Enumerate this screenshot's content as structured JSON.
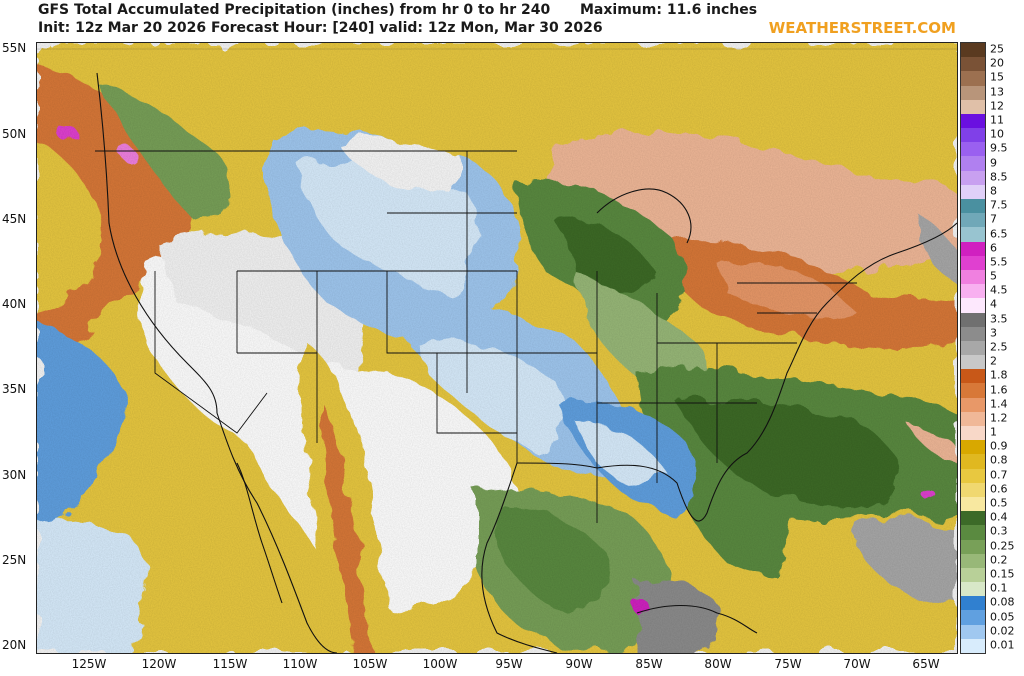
{
  "header": {
    "title": "GFS Total Accumulated Precipitation (inches) from hr 0 to hr 240",
    "maximum": "Maximum: 11.6 inches",
    "init": "Init: 12z Mar 20 2026  Forecast Hour: [240]  valid: 12z Mon, Mar 30 2026",
    "brand": "WEATHERSTREET.COM"
  },
  "lat_labels": [
    "55N",
    "50N",
    "45N",
    "40N",
    "35N",
    "30N",
    "25N",
    "20N"
  ],
  "lon_labels": [
    "125W",
    "120W",
    "115W",
    "110W",
    "105W",
    "100W",
    "95W",
    "90W",
    "85W",
    "80W",
    "75W",
    "70W",
    "65W"
  ],
  "legend": {
    "levels": [
      "25",
      "20",
      "15",
      "13",
      "12",
      "11",
      "10",
      "9.5",
      "9",
      "8.5",
      "8",
      "7.5",
      "7",
      "6.5",
      "6",
      "5.5",
      "5",
      "4.5",
      "4",
      "3.5",
      "3",
      "2.5",
      "2",
      "1.8",
      "1.6",
      "1.4",
      "1.2",
      "1",
      "0.9",
      "0.8",
      "0.7",
      "0.6",
      "0.5",
      "0.4",
      "0.3",
      "0.25",
      "0.2",
      "0.15",
      "0.1",
      "0.08",
      "0.05",
      "0.02",
      "0.01"
    ],
    "colors": [
      "#5a3a20",
      "#7a5236",
      "#9c7050",
      "#b8957a",
      "#e0c0a8",
      "#6a10e0",
      "#8040e8",
      "#9a60f0",
      "#b080f0",
      "#c8a0f0",
      "#e0d0f8",
      "#4a90a0",
      "#70a8b8",
      "#98c4d0",
      "#d020c0",
      "#e040d0",
      "#f080e0",
      "#f8b0f0",
      "#fde8fd",
      "#707070",
      "#8c8c8c",
      "#a8a8a8",
      "#c8c8c8",
      "#c85818",
      "#d87838",
      "#e89868",
      "#f0b898",
      "#f8d8c8",
      "#d8a800",
      "#e0b820",
      "#e8c840",
      "#f0d870",
      "#f8e8a0",
      "#3c6a28",
      "#5a8a40",
      "#78a058",
      "#98b878",
      "#b8d098",
      "#d8e8c8",
      "#3080d0",
      "#60a0e0",
      "#a0c8f0",
      "#d8ecfc"
    ]
  }
}
